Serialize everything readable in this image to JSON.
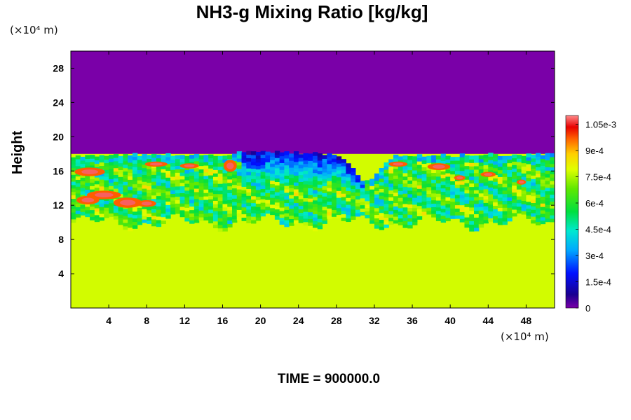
{
  "chart_data": {
    "type": "heatmap",
    "title": "NH3-g Mixing Ratio [kg/kg]",
    "ylabel": "Height",
    "y_unit": "(×10⁴ m)",
    "x_unit": "(×10⁴ m)",
    "xlim": [
      0,
      51
    ],
    "ylim": [
      0,
      30
    ],
    "x_ticks": [
      4,
      8,
      12,
      16,
      20,
      24,
      28,
      32,
      36,
      40,
      44,
      48
    ],
    "y_ticks": [
      4,
      8,
      12,
      16,
      20,
      24,
      28
    ],
    "colorbar": {
      "range": [
        0,
        0.0011
      ],
      "tick_values": [
        0,
        0.00015,
        0.0003,
        0.00045,
        0.0006,
        0.00075,
        0.0009,
        0.00105
      ],
      "tick_labels": [
        "0",
        "1.5e-4",
        "3e-4",
        "4.5e-4",
        "6e-4",
        "7.5e-4",
        "9e-4",
        "1.05e-3"
      ]
    },
    "field_summary": {
      "lower_layer_value": 0.00078,
      "upper_layer_value": 0.0,
      "interface_height": 17.8,
      "mixing_zone_height": [
        10,
        18
      ],
      "interface_profile_x": [
        0,
        2,
        4,
        6,
        8,
        10,
        12,
        14,
        16,
        17,
        18,
        20,
        22,
        24,
        26,
        28,
        29,
        30,
        31,
        32,
        33,
        34,
        36,
        38,
        40,
        42,
        44,
        46,
        48,
        51
      ],
      "interface_profile_y": [
        17.4,
        17.6,
        17.5,
        17.8,
        17.6,
        17.7,
        17.6,
        17.8,
        17.7,
        17.8,
        18.0,
        18.0,
        18.0,
        17.9,
        18.0,
        17.6,
        16.8,
        15.8,
        14.5,
        15.0,
        16.6,
        17.6,
        17.6,
        17.7,
        17.6,
        17.7,
        17.8,
        17.6,
        17.7,
        17.8
      ]
    }
  },
  "footer": {
    "time_label": "TIME = 900000.0"
  }
}
